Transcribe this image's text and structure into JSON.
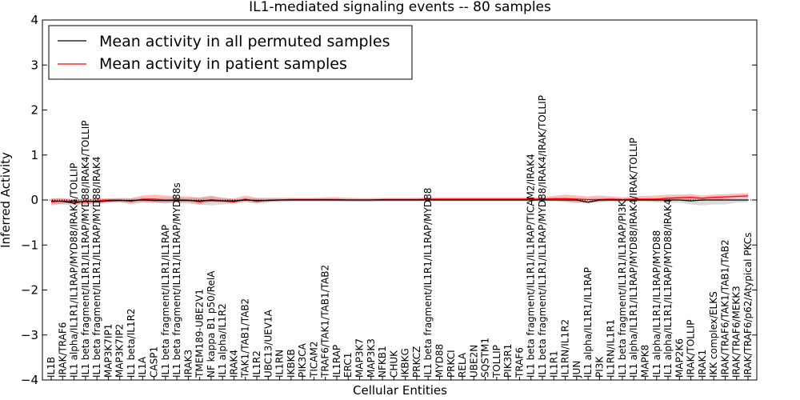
{
  "chart_data": {
    "type": "line",
    "title": "IL1-mediated signaling events -- 80 samples",
    "xlabel": "Cellular Entities",
    "ylabel": "Inferred Activity",
    "ylim": [
      -4,
      4
    ],
    "yticks": [
      -4,
      -3,
      -2,
      -1,
      0,
      1,
      2,
      3,
      4
    ],
    "ytick_labels": [
      "−4",
      "−3",
      "−2",
      "−1",
      "0",
      "1",
      "2",
      "3",
      "4"
    ],
    "legend_location": "top-left",
    "categories": [
      "IL1B",
      "IRAK/TRAF6",
      "IL1 alpha/IL1R1/IL1RAP/MYD88/IRAK4/TOLLIP",
      "IL1 beta fragment/IL1R1/IL1RAP/MYD88/IRAK4/TOLLIP",
      "IL1 beta fragment/IL1R1/IL1RAP/MYD88/IRAK4",
      "MAP3K7IP1",
      "MAP3K7IP2",
      "IL1 beta/IL1R2",
      "IL1A",
      "CASP1",
      "IL1 beta fragment/IL1R1/IL1RAP",
      "IL1 beta fragment/IL1R1/IL1RAP/MYD88s",
      "IRAK3",
      "TMEM189-UBE2V1",
      "NF kappa B1 p50/RelA",
      "IL1 alpha/IL1R2",
      "IRAK4",
      "TAK1/TAB1/TAB2",
      "IL1R2",
      "UBC13/UEV1A",
      "IL1RN",
      "IKBKB",
      "PIK3CA",
      "TICAM2",
      "TRAF6/TAK1/TAB1/TAB2",
      "IL1RAP",
      "ERC1",
      "MAP3K7",
      "MAP3K3",
      "NFKB1",
      "CHUK",
      "IKBKG",
      "PRKCZ",
      "IL1 beta fragment/IL1R1/IL1RAP/MYD88",
      "MYD88",
      "PRKCI",
      "RELA",
      "UBE2N",
      "SQSTM1",
      "TOLLIP",
      "PIK3R1",
      "TRAF6",
      "IL1 beta fragment/IL1R1/IL1RAP/TICAM2/IRAK4",
      "IL1 beta fragment/IL1R1/IL1RAP/MYD88/IRAK4/IRAK/TOLLIP",
      "IL1R1",
      "IL1RN/IL1R2",
      "JUN",
      "IL1 alpha/IL1R1/IL1RAP",
      "PI3K",
      "IL1RN/IL1R1",
      "IL1 beta fragment/IL1R1/IL1RAP/PI3K",
      "IL1 alpha/IL1R1/IL1RAP/MYD88/IRAK4/IRAK/TOLLIP",
      "MAPK8",
      "IL1 alpha/IL1R1/IL1RAP/MYD88",
      "IL1 alpha/IL1R1/IL1RAP/MYD88/IRAK4",
      "MAP2K6",
      "IRAK/TOLLIP",
      "IRAK1",
      "IKK complex/ELKS",
      "IRAK/TRAF6/TAK1/TAB1/TAB2",
      "IRAK/TRAF6/MEKK3",
      "IRAK/TRAF6/p62/Atypical PKCs"
    ],
    "series": [
      {
        "name": "Mean activity in all permuted samples",
        "color": "#000000",
        "values": [
          -0.02,
          -0.03,
          -0.07,
          -0.02,
          -0.04,
          -0.02,
          -0.01,
          -0.01,
          0.0,
          -0.01,
          -0.01,
          -0.01,
          -0.01,
          -0.02,
          -0.01,
          -0.02,
          -0.02,
          0.0,
          -0.01,
          -0.01,
          0.0,
          0.0,
          0.0,
          0.0,
          0.0,
          0.0,
          0.0,
          0.0,
          0.0,
          0.0,
          0.0,
          0.0,
          0.0,
          0.0,
          0.0,
          0.0,
          0.0,
          0.0,
          0.0,
          0.0,
          0.0,
          0.0,
          0.0,
          0.0,
          0.0,
          0.0,
          0.0,
          -0.05,
          0.0,
          0.0,
          0.0,
          0.0,
          0.0,
          0.0,
          0.0,
          0.0,
          -0.02,
          0.0,
          0.0,
          0.0,
          0.0,
          0.0
        ],
        "band_low": [
          -0.08,
          -0.1,
          -0.12,
          -0.09,
          -0.1,
          -0.07,
          -0.06,
          -0.06,
          -0.05,
          -0.06,
          -0.07,
          -0.07,
          -0.08,
          -0.1,
          -0.12,
          -0.1,
          -0.06,
          -0.04,
          -0.06,
          -0.05,
          -0.03,
          -0.03,
          -0.03,
          -0.03,
          -0.03,
          -0.03,
          -0.03,
          -0.03,
          -0.03,
          -0.03,
          -0.03,
          -0.03,
          -0.03,
          -0.03,
          -0.03,
          -0.03,
          -0.03,
          -0.03,
          -0.03,
          -0.03,
          -0.03,
          -0.03,
          -0.03,
          -0.03,
          -0.03,
          -0.05,
          -0.06,
          -0.08,
          -0.05,
          -0.04,
          -0.04,
          -0.04,
          -0.04,
          -0.05,
          -0.07,
          -0.06,
          -0.1,
          -0.12,
          -0.1,
          -0.1,
          -0.06,
          -0.05
        ],
        "band_high": [
          0.04,
          0.04,
          -0.02,
          0.04,
          0.02,
          0.03,
          0.04,
          0.04,
          0.05,
          0.04,
          0.05,
          0.05,
          0.05,
          0.06,
          0.08,
          0.06,
          0.02,
          0.04,
          0.04,
          0.03,
          0.03,
          0.03,
          0.03,
          0.03,
          0.03,
          0.03,
          0.03,
          0.03,
          0.03,
          0.03,
          0.03,
          0.03,
          0.03,
          0.03,
          0.03,
          0.03,
          0.03,
          0.03,
          0.03,
          0.03,
          0.03,
          0.03,
          0.03,
          0.03,
          0.03,
          0.04,
          0.05,
          -0.02,
          0.04,
          0.03,
          0.03,
          0.03,
          0.03,
          0.04,
          0.06,
          0.05,
          0.04,
          0.05,
          0.04,
          0.04,
          0.04,
          0.04
        ]
      },
      {
        "name": "Mean activity in patient samples",
        "color": "#ff0000",
        "values": [
          -0.04,
          -0.02,
          -0.03,
          -0.04,
          -0.02,
          0.0,
          0.0,
          -0.03,
          0.02,
          0.02,
          0.0,
          0.01,
          0.0,
          -0.04,
          0.01,
          -0.02,
          -0.04,
          0.02,
          -0.03,
          0.0,
          0.0,
          0.01,
          0.01,
          0.01,
          0.01,
          0.01,
          0.0,
          0.0,
          0.0,
          0.01,
          0.01,
          0.01,
          0.01,
          0.02,
          0.02,
          0.02,
          0.02,
          0.02,
          0.02,
          0.02,
          0.02,
          0.02,
          0.02,
          0.02,
          0.03,
          0.03,
          0.02,
          0.01,
          0.01,
          0.02,
          0.01,
          0.02,
          0.02,
          0.02,
          0.04,
          0.05,
          0.06,
          0.04,
          0.06,
          0.07,
          0.08,
          0.09
        ],
        "band_low": [
          -0.12,
          -0.08,
          -0.08,
          -0.1,
          -0.06,
          -0.04,
          -0.04,
          -0.09,
          -0.05,
          -0.06,
          -0.07,
          -0.05,
          -0.05,
          -0.1,
          -0.04,
          -0.06,
          -0.08,
          -0.04,
          -0.08,
          -0.04,
          -0.04,
          -0.02,
          -0.02,
          -0.02,
          -0.02,
          -0.02,
          -0.03,
          -0.03,
          -0.03,
          -0.02,
          -0.02,
          -0.02,
          -0.02,
          -0.01,
          -0.01,
          -0.01,
          -0.01,
          -0.01,
          -0.01,
          -0.01,
          -0.01,
          -0.01,
          -0.01,
          -0.01,
          0.0,
          -0.03,
          -0.06,
          -0.05,
          -0.04,
          -0.02,
          -0.03,
          -0.02,
          -0.02,
          -0.03,
          -0.02,
          -0.01,
          0.0,
          -0.02,
          0.0,
          0.02,
          0.03,
          0.04
        ],
        "band_high": [
          0.03,
          0.04,
          0.02,
          0.02,
          0.03,
          0.04,
          0.04,
          0.04,
          0.1,
          0.12,
          0.1,
          0.08,
          0.08,
          0.05,
          0.1,
          0.04,
          0.03,
          0.1,
          0.05,
          0.05,
          0.05,
          0.05,
          0.05,
          0.05,
          0.06,
          0.06,
          0.05,
          0.04,
          0.04,
          0.05,
          0.05,
          0.05,
          0.05,
          0.06,
          0.06,
          0.06,
          0.06,
          0.06,
          0.06,
          0.06,
          0.06,
          0.06,
          0.06,
          0.06,
          0.09,
          0.12,
          0.1,
          0.08,
          0.1,
          0.08,
          0.06,
          0.08,
          0.09,
          0.1,
          0.12,
          0.12,
          0.13,
          0.1,
          0.12,
          0.13,
          0.14,
          0.15
        ]
      }
    ]
  }
}
